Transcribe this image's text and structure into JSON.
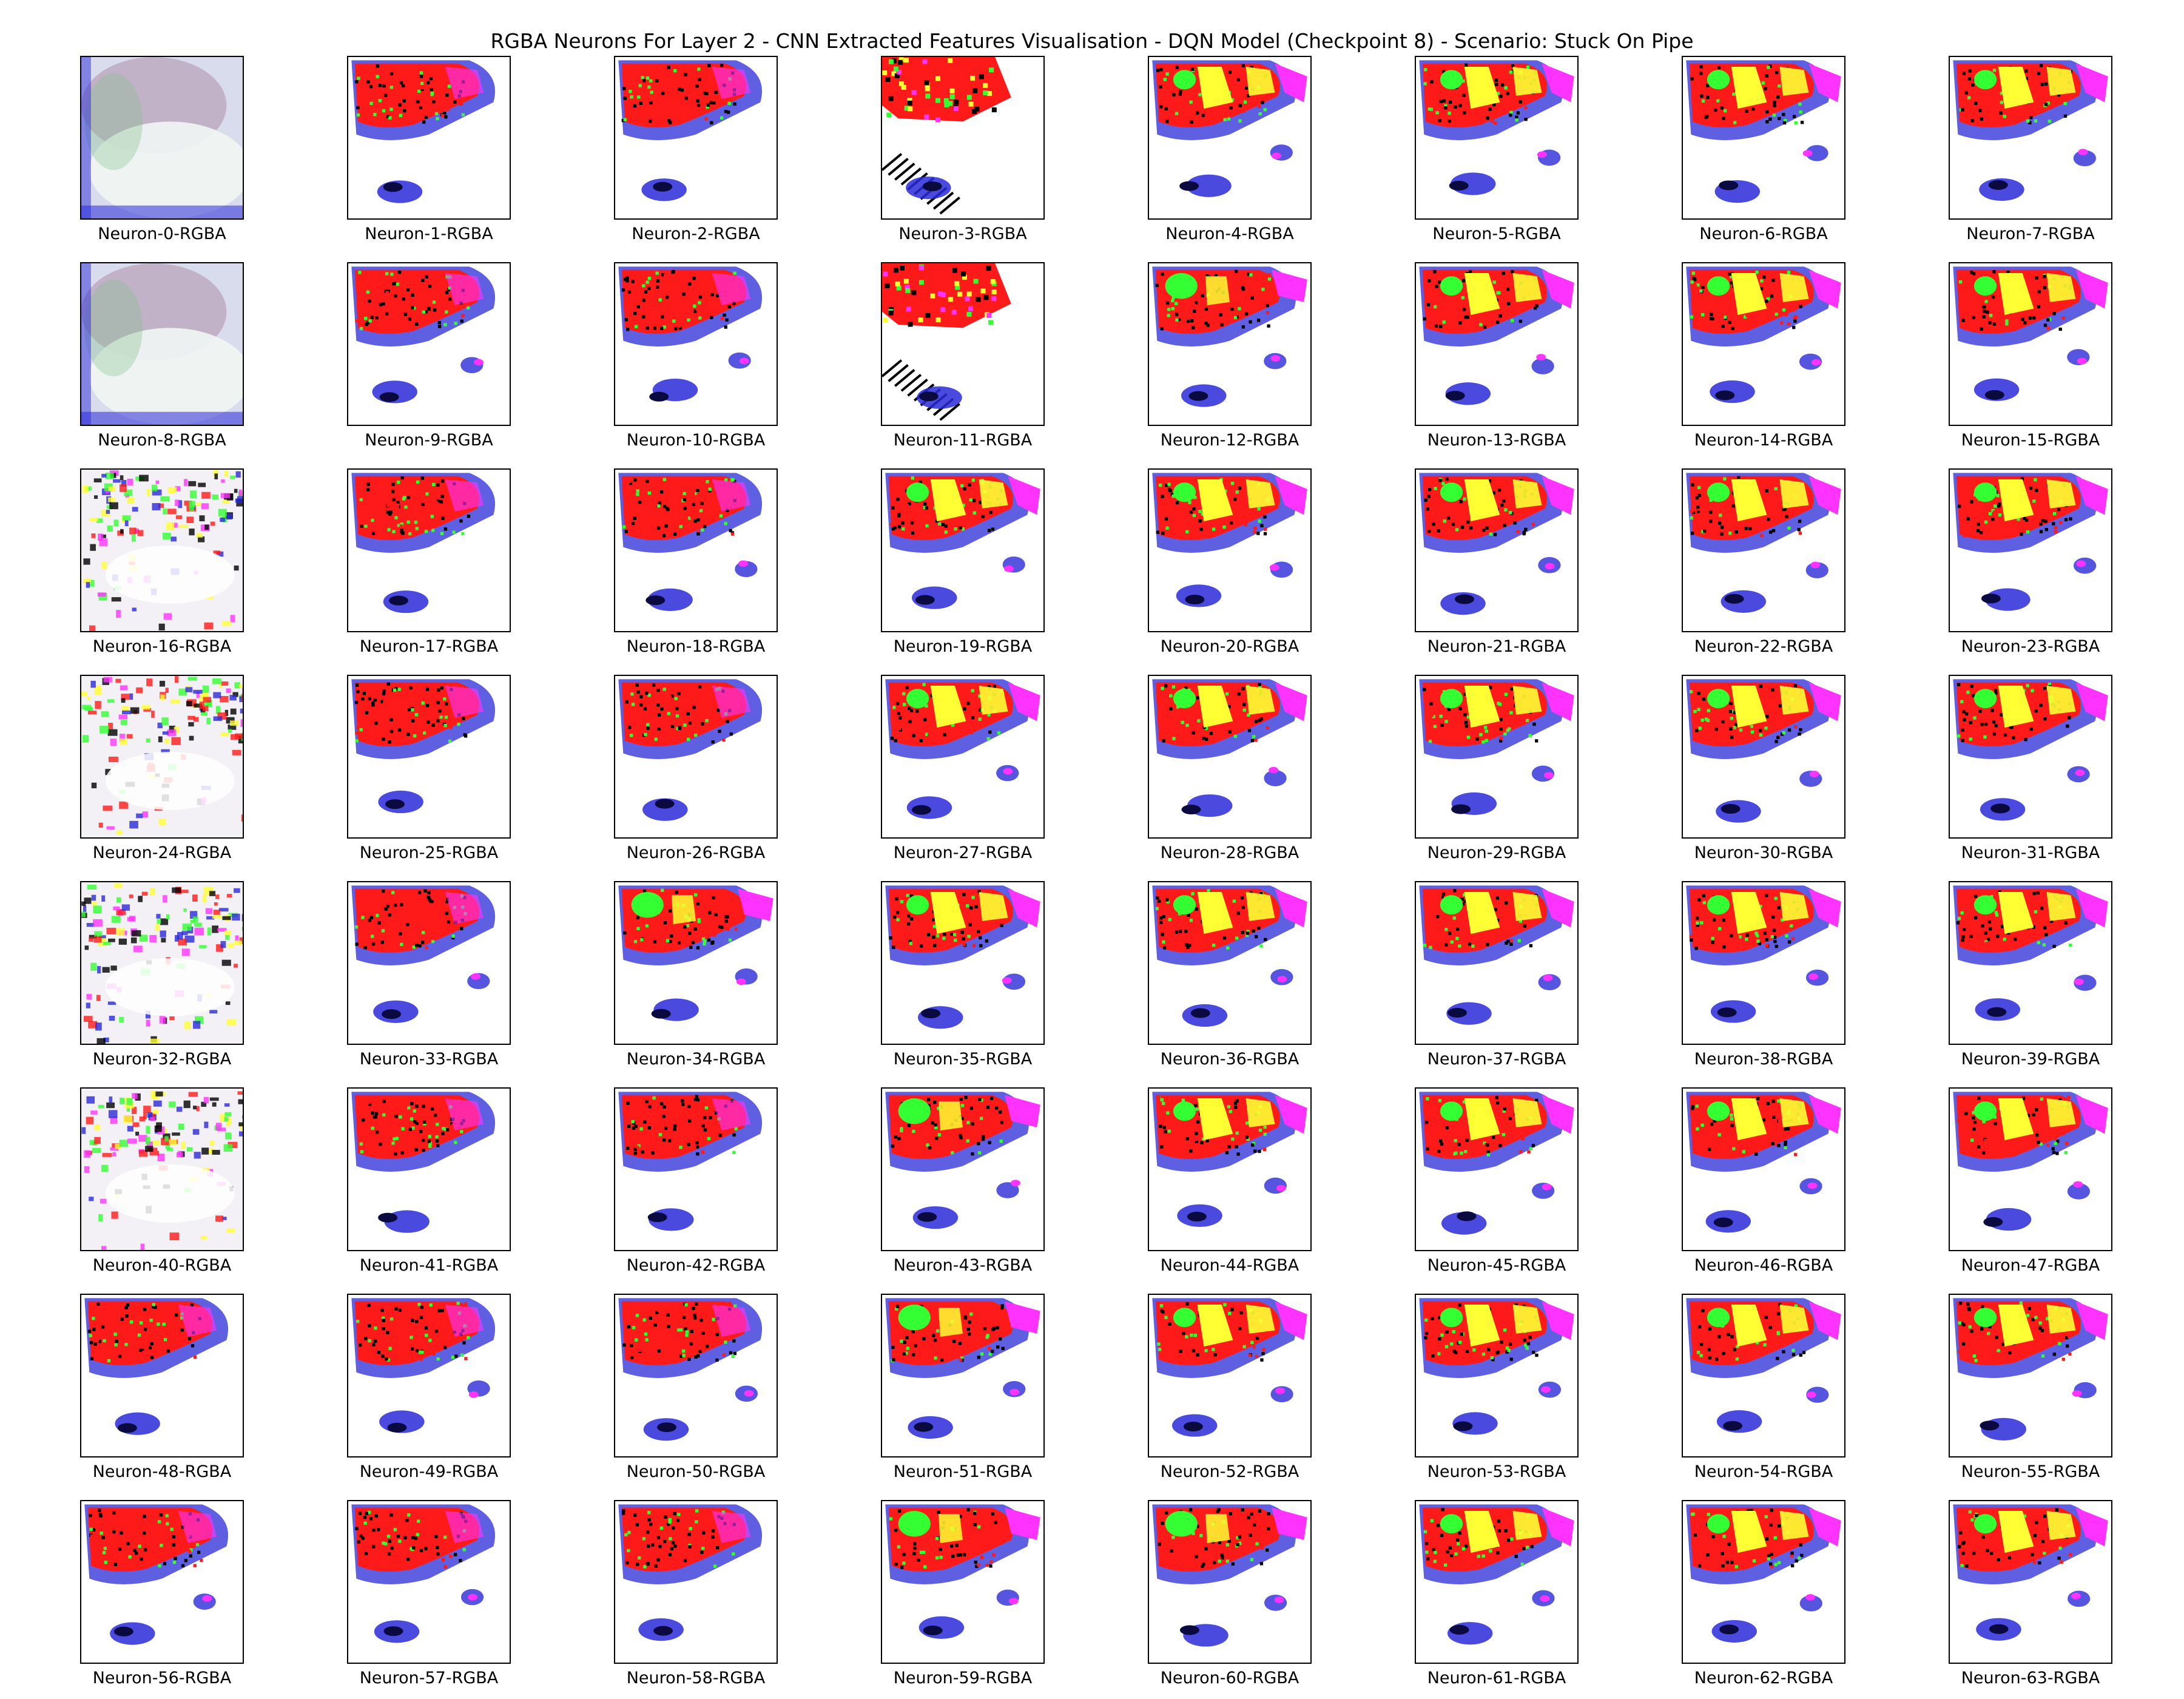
{
  "figure": {
    "title": "RGBA Neurons For Layer 2 - CNN Extracted Features Visualisation - DQN Model (Checkpoint 8) - Scenario: Stuck On Pipe"
  },
  "grid": {
    "columns": 8,
    "rows": 8
  },
  "panels": [
    {
      "label": "Neuron-0-RGBA",
      "style": "wash"
    },
    {
      "label": "Neuron-1-RGBA",
      "style": "blob"
    },
    {
      "label": "Neuron-2-RGBA",
      "style": "blob"
    },
    {
      "label": "Neuron-3-RGBA",
      "style": "streaks"
    },
    {
      "label": "Neuron-4-RGBA",
      "style": "yellow"
    },
    {
      "label": "Neuron-5-RGBA",
      "style": "yellow"
    },
    {
      "label": "Neuron-6-RGBA",
      "style": "yellow"
    },
    {
      "label": "Neuron-7-RGBA",
      "style": "yellow"
    },
    {
      "label": "Neuron-8-RGBA",
      "style": "wash"
    },
    {
      "label": "Neuron-9-RGBA",
      "style": "blob"
    },
    {
      "label": "Neuron-10-RGBA",
      "style": "blob"
    },
    {
      "label": "Neuron-11-RGBA",
      "style": "streaks"
    },
    {
      "label": "Neuron-12-RGBA",
      "style": "green"
    },
    {
      "label": "Neuron-13-RGBA",
      "style": "yellow"
    },
    {
      "label": "Neuron-14-RGBA",
      "style": "yellow"
    },
    {
      "label": "Neuron-15-RGBA",
      "style": "yellow"
    },
    {
      "label": "Neuron-16-RGBA",
      "style": "noise"
    },
    {
      "label": "Neuron-17-RGBA",
      "style": "blob"
    },
    {
      "label": "Neuron-18-RGBA",
      "style": "blob"
    },
    {
      "label": "Neuron-19-RGBA",
      "style": "yellow"
    },
    {
      "label": "Neuron-20-RGBA",
      "style": "yellow"
    },
    {
      "label": "Neuron-21-RGBA",
      "style": "yellow"
    },
    {
      "label": "Neuron-22-RGBA",
      "style": "yellow"
    },
    {
      "label": "Neuron-23-RGBA",
      "style": "yellow"
    },
    {
      "label": "Neuron-24-RGBA",
      "style": "noise"
    },
    {
      "label": "Neuron-25-RGBA",
      "style": "blob"
    },
    {
      "label": "Neuron-26-RGBA",
      "style": "blob"
    },
    {
      "label": "Neuron-27-RGBA",
      "style": "yellow"
    },
    {
      "label": "Neuron-28-RGBA",
      "style": "yellow"
    },
    {
      "label": "Neuron-29-RGBA",
      "style": "yellow"
    },
    {
      "label": "Neuron-30-RGBA",
      "style": "yellow"
    },
    {
      "label": "Neuron-31-RGBA",
      "style": "yellow"
    },
    {
      "label": "Neuron-32-RGBA",
      "style": "noise"
    },
    {
      "label": "Neuron-33-RGBA",
      "style": "blob"
    },
    {
      "label": "Neuron-34-RGBA",
      "style": "green"
    },
    {
      "label": "Neuron-35-RGBA",
      "style": "yellow"
    },
    {
      "label": "Neuron-36-RGBA",
      "style": "yellow"
    },
    {
      "label": "Neuron-37-RGBA",
      "style": "yellow"
    },
    {
      "label": "Neuron-38-RGBA",
      "style": "yellow"
    },
    {
      "label": "Neuron-39-RGBA",
      "style": "yellow"
    },
    {
      "label": "Neuron-40-RGBA",
      "style": "noise"
    },
    {
      "label": "Neuron-41-RGBA",
      "style": "blob"
    },
    {
      "label": "Neuron-42-RGBA",
      "style": "blob"
    },
    {
      "label": "Neuron-43-RGBA",
      "style": "green"
    },
    {
      "label": "Neuron-44-RGBA",
      "style": "yellow"
    },
    {
      "label": "Neuron-45-RGBA",
      "style": "yellow"
    },
    {
      "label": "Neuron-46-RGBA",
      "style": "yellow"
    },
    {
      "label": "Neuron-47-RGBA",
      "style": "yellow"
    },
    {
      "label": "Neuron-48-RGBA",
      "style": "blob"
    },
    {
      "label": "Neuron-49-RGBA",
      "style": "blob"
    },
    {
      "label": "Neuron-50-RGBA",
      "style": "blob"
    },
    {
      "label": "Neuron-51-RGBA",
      "style": "green"
    },
    {
      "label": "Neuron-52-RGBA",
      "style": "yellow"
    },
    {
      "label": "Neuron-53-RGBA",
      "style": "yellow"
    },
    {
      "label": "Neuron-54-RGBA",
      "style": "yellow"
    },
    {
      "label": "Neuron-55-RGBA",
      "style": "yellow"
    },
    {
      "label": "Neuron-56-RGBA",
      "style": "blob"
    },
    {
      "label": "Neuron-57-RGBA",
      "style": "blob"
    },
    {
      "label": "Neuron-58-RGBA",
      "style": "blob"
    },
    {
      "label": "Neuron-59-RGBA",
      "style": "green"
    },
    {
      "label": "Neuron-60-RGBA",
      "style": "green"
    },
    {
      "label": "Neuron-61-RGBA",
      "style": "yellow"
    },
    {
      "label": "Neuron-62-RGBA",
      "style": "yellow"
    },
    {
      "label": "Neuron-63-RGBA",
      "style": "yellow"
    }
  ],
  "palette": {
    "red": "#ff1a1a",
    "blue": "#2a2ad8",
    "navy": "#0a0a40",
    "green": "#33ff33",
    "yellow": "#ffff33",
    "magenta": "#ff33ff",
    "black": "#000000",
    "white": "#ffffff"
  }
}
